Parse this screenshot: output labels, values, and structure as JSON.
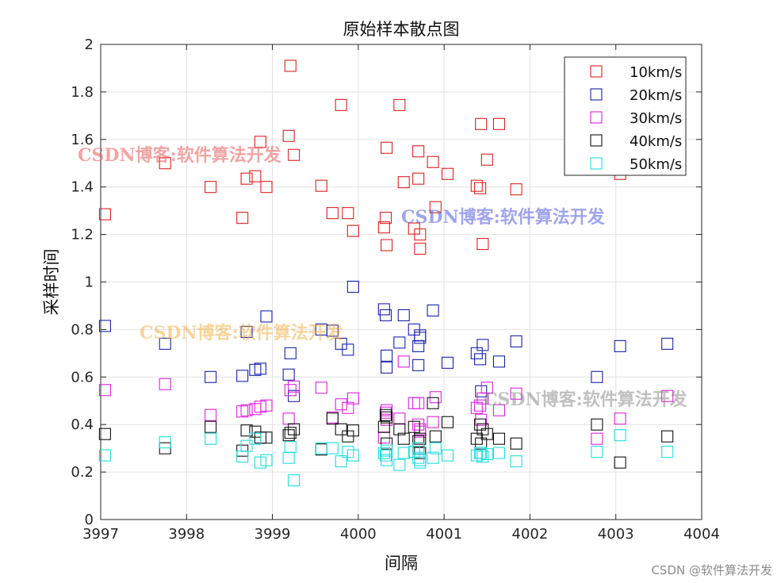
{
  "chart_data": {
    "type": "scatter",
    "title": "原始样本散点图",
    "xlabel": "间隔",
    "ylabel": "采样时间",
    "xlim": [
      3997,
      4004
    ],
    "ylim": [
      0,
      2
    ],
    "xticks": [
      3997,
      3998,
      3999,
      4000,
      4001,
      4002,
      4003,
      4004
    ],
    "yticks": [
      0,
      0.2,
      0.4,
      0.6,
      0.8,
      1,
      1.2,
      1.4,
      1.6,
      1.8,
      2
    ],
    "grid": true,
    "legend_position": "top-right",
    "marker": "square",
    "series": [
      {
        "name": "10km/s",
        "color": "#dd2222",
        "points": [
          [
            3997.05,
            1.285
          ],
          [
            3997.75,
            1.5
          ],
          [
            3998.28,
            1.4
          ],
          [
            3998.65,
            1.27
          ],
          [
            3998.7,
            1.435
          ],
          [
            3998.8,
            1.445
          ],
          [
            3998.86,
            1.59
          ],
          [
            3998.93,
            1.4
          ],
          [
            3999.19,
            1.615
          ],
          [
            3999.21,
            1.91
          ],
          [
            3999.25,
            1.535
          ],
          [
            3999.57,
            1.405
          ],
          [
            3999.7,
            1.29
          ],
          [
            3999.8,
            1.745
          ],
          [
            3999.88,
            1.29
          ],
          [
            3999.94,
            1.215
          ],
          [
            4000.3,
            1.23
          ],
          [
            4000.32,
            1.27
          ],
          [
            4000.33,
            1.565
          ],
          [
            4000.33,
            1.155
          ],
          [
            4000.48,
            1.745
          ],
          [
            4000.53,
            1.42
          ],
          [
            4000.65,
            1.225
          ],
          [
            4000.7,
            1.55
          ],
          [
            4000.7,
            1.435
          ],
          [
            4000.72,
            1.2
          ],
          [
            4000.72,
            1.14
          ],
          [
            4000.87,
            1.505
          ],
          [
            4000.9,
            1.315
          ],
          [
            4001.04,
            1.455
          ],
          [
            4001.38,
            1.405
          ],
          [
            4001.42,
            1.395
          ],
          [
            4001.43,
            1.665
          ],
          [
            4001.45,
            1.16
          ],
          [
            4001.5,
            1.515
          ],
          [
            4001.64,
            1.665
          ],
          [
            4001.84,
            1.39
          ],
          [
            4003.05,
            1.455
          ]
        ]
      },
      {
        "name": "20km/s",
        "color": "#1a22aa",
        "points": [
          [
            3997.05,
            0.815
          ],
          [
            3997.75,
            0.74
          ],
          [
            3998.28,
            0.6
          ],
          [
            3998.65,
            0.605
          ],
          [
            3998.7,
            0.79
          ],
          [
            3998.8,
            0.63
          ],
          [
            3998.86,
            0.635
          ],
          [
            3998.93,
            0.855
          ],
          [
            3999.19,
            0.61
          ],
          [
            3999.21,
            0.7
          ],
          [
            3999.25,
            0.52
          ],
          [
            3999.57,
            0.8
          ],
          [
            3999.7,
            0.795
          ],
          [
            3999.8,
            0.74
          ],
          [
            3999.88,
            0.715
          ],
          [
            3999.94,
            0.98
          ],
          [
            4000.3,
            0.885
          ],
          [
            4000.32,
            0.86
          ],
          [
            4000.33,
            0.64
          ],
          [
            4000.33,
            0.69
          ],
          [
            4000.48,
            0.745
          ],
          [
            4000.53,
            0.86
          ],
          [
            4000.65,
            0.8
          ],
          [
            4000.7,
            0.73
          ],
          [
            4000.7,
            0.65
          ],
          [
            4000.72,
            0.775
          ],
          [
            4000.72,
            0.765
          ],
          [
            4000.87,
            0.88
          ],
          [
            4001.04,
            0.66
          ],
          [
            4001.38,
            0.7
          ],
          [
            4001.42,
            0.675
          ],
          [
            4001.43,
            0.54
          ],
          [
            4001.45,
            0.735
          ],
          [
            4001.64,
            0.665
          ],
          [
            4001.84,
            0.75
          ],
          [
            4002.78,
            0.6
          ],
          [
            4003.05,
            0.73
          ],
          [
            4003.6,
            0.74
          ]
        ]
      },
      {
        "name": "30km/s",
        "color": "#dd22dd",
        "points": [
          [
            3997.05,
            0.545
          ],
          [
            3997.75,
            0.57
          ],
          [
            3998.28,
            0.44
          ],
          [
            3998.65,
            0.455
          ],
          [
            3998.7,
            0.46
          ],
          [
            3998.8,
            0.465
          ],
          [
            3998.86,
            0.475
          ],
          [
            3998.93,
            0.48
          ],
          [
            3999.19,
            0.425
          ],
          [
            3999.21,
            0.545
          ],
          [
            3999.25,
            0.56
          ],
          [
            3999.57,
            0.555
          ],
          [
            3999.7,
            0.43
          ],
          [
            3999.8,
            0.485
          ],
          [
            3999.88,
            0.47
          ],
          [
            3999.94,
            0.51
          ],
          [
            4000.3,
            0.345
          ],
          [
            4000.32,
            0.45
          ],
          [
            4000.33,
            0.46
          ],
          [
            4000.33,
            0.42
          ],
          [
            4000.48,
            0.425
          ],
          [
            4000.53,
            0.665
          ],
          [
            4000.65,
            0.49
          ],
          [
            4000.7,
            0.49
          ],
          [
            4000.7,
            0.4
          ],
          [
            4000.72,
            0.38
          ],
          [
            4000.72,
            0.37
          ],
          [
            4000.87,
            0.41
          ],
          [
            4000.9,
            0.515
          ],
          [
            4001.38,
            0.47
          ],
          [
            4001.42,
            0.48
          ],
          [
            4001.43,
            0.42
          ],
          [
            4001.45,
            0.51
          ],
          [
            4001.5,
            0.555
          ],
          [
            4001.64,
            0.46
          ],
          [
            4001.84,
            0.53
          ],
          [
            4002.78,
            0.34
          ],
          [
            4003.05,
            0.425
          ],
          [
            4003.6,
            0.52
          ]
        ]
      },
      {
        "name": "40km/s",
        "color": "#111111",
        "points": [
          [
            3997.05,
            0.36
          ],
          [
            3997.75,
            0.3
          ],
          [
            3998.28,
            0.39
          ],
          [
            3998.65,
            0.29
          ],
          [
            3998.7,
            0.375
          ],
          [
            3998.8,
            0.37
          ],
          [
            3998.86,
            0.345
          ],
          [
            3998.93,
            0.345
          ],
          [
            3999.19,
            0.355
          ],
          [
            3999.21,
            0.365
          ],
          [
            3999.25,
            0.38
          ],
          [
            3999.57,
            0.295
          ],
          [
            3999.7,
            0.425
          ],
          [
            3999.8,
            0.38
          ],
          [
            3999.88,
            0.35
          ],
          [
            3999.94,
            0.375
          ],
          [
            4000.3,
            0.39
          ],
          [
            4000.32,
            0.44
          ],
          [
            4000.33,
            0.43
          ],
          [
            4000.33,
            0.32
          ],
          [
            4000.48,
            0.38
          ],
          [
            4000.53,
            0.34
          ],
          [
            4000.65,
            0.39
          ],
          [
            4000.7,
            0.33
          ],
          [
            4000.7,
            0.3
          ],
          [
            4000.72,
            0.34
          ],
          [
            4000.72,
            0.28
          ],
          [
            4000.87,
            0.49
          ],
          [
            4000.9,
            0.35
          ],
          [
            4001.04,
            0.41
          ],
          [
            4001.38,
            0.34
          ],
          [
            4001.42,
            0.4
          ],
          [
            4001.43,
            0.32
          ],
          [
            4001.45,
            0.38
          ],
          [
            4001.5,
            0.36
          ],
          [
            4001.64,
            0.34
          ],
          [
            4001.84,
            0.32
          ],
          [
            4002.78,
            0.4
          ],
          [
            4003.05,
            0.24
          ],
          [
            4003.6,
            0.35
          ]
        ]
      },
      {
        "name": "50km/s",
        "color": "#22dddd",
        "points": [
          [
            3997.05,
            0.27
          ],
          [
            3997.75,
            0.325
          ],
          [
            3998.28,
            0.34
          ],
          [
            3998.65,
            0.265
          ],
          [
            3998.7,
            0.31
          ],
          [
            3998.8,
            0.34
          ],
          [
            3998.86,
            0.24
          ],
          [
            3998.93,
            0.25
          ],
          [
            3999.19,
            0.26
          ],
          [
            3999.21,
            0.305
          ],
          [
            3999.25,
            0.165
          ],
          [
            3999.57,
            0.3
          ],
          [
            3999.7,
            0.3
          ],
          [
            3999.8,
            0.245
          ],
          [
            3999.88,
            0.285
          ],
          [
            3999.94,
            0.27
          ],
          [
            4000.3,
            0.28
          ],
          [
            4000.32,
            0.27
          ],
          [
            4000.33,
            0.29
          ],
          [
            4000.33,
            0.25
          ],
          [
            4000.48,
            0.23
          ],
          [
            4000.53,
            0.28
          ],
          [
            4000.65,
            0.285
          ],
          [
            4000.7,
            0.3
          ],
          [
            4000.7,
            0.26
          ],
          [
            4000.72,
            0.25
          ],
          [
            4000.72,
            0.24
          ],
          [
            4000.87,
            0.26
          ],
          [
            4000.9,
            0.3
          ],
          [
            4001.04,
            0.27
          ],
          [
            4001.38,
            0.27
          ],
          [
            4001.42,
            0.28
          ],
          [
            4001.43,
            0.28
          ],
          [
            4001.45,
            0.265
          ],
          [
            4001.5,
            0.275
          ],
          [
            4001.64,
            0.28
          ],
          [
            4001.84,
            0.245
          ],
          [
            4002.78,
            0.285
          ],
          [
            4003.05,
            0.355
          ],
          [
            4003.6,
            0.285
          ]
        ]
      }
    ]
  },
  "watermarks": [
    "CSDN博客:软件算法开发",
    "CSDN博客:软件算法开发",
    "CSDN博客:软件算法开发",
    "CSDN博客:软件算法开发"
  ],
  "credit": "CSDN @软件算法开发"
}
